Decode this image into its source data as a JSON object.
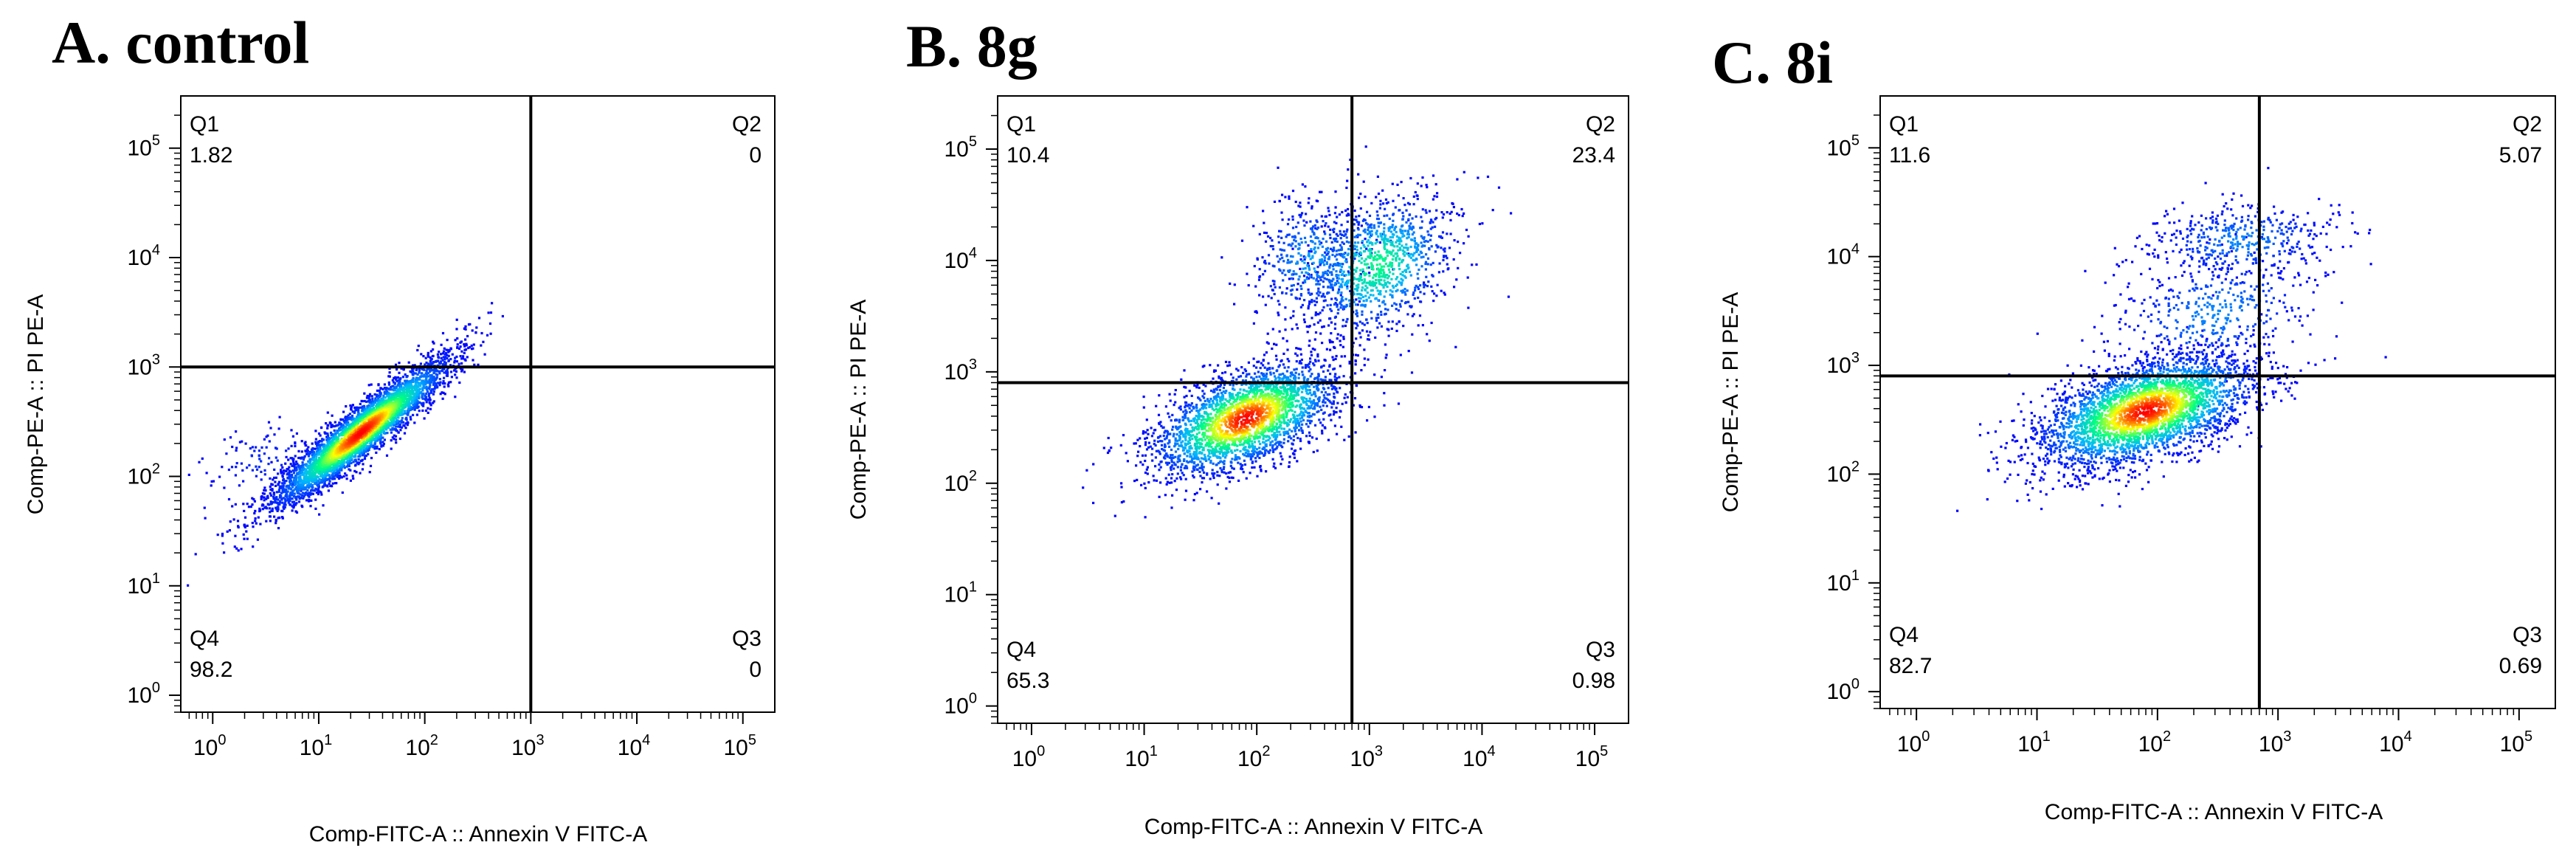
{
  "chart_data": [
    {
      "type": "scatter",
      "title": "A. control",
      "xlabel": "Comp-FITC-A :: Annexin V FITC-A",
      "ylabel": "Comp-PE-A :: PI PE-A",
      "x_scale": "log",
      "y_scale": "log",
      "xlim": [
        0.5,
        200000
      ],
      "ylim": [
        0.7,
        300000
      ],
      "x_ticks": [
        1,
        10,
        100,
        1000,
        10000,
        100000
      ],
      "y_ticks": [
        1,
        10,
        100,
        1000,
        10000,
        100000
      ],
      "x_tick_labels": [
        {
          "base": "10",
          "exp": "0"
        },
        {
          "base": "10",
          "exp": "1"
        },
        {
          "base": "10",
          "exp": "2"
        },
        {
          "base": "10",
          "exp": "3"
        },
        {
          "base": "10",
          "exp": "4"
        },
        {
          "base": "10",
          "exp": "5"
        }
      ],
      "y_tick_labels": [
        {
          "base": "10",
          "exp": "0"
        },
        {
          "base": "10",
          "exp": "1"
        },
        {
          "base": "10",
          "exp": "2"
        },
        {
          "base": "10",
          "exp": "3"
        },
        {
          "base": "10",
          "exp": "4"
        },
        {
          "base": "10",
          "exp": "5"
        }
      ],
      "gate_x": 1000,
      "gate_y": 1000,
      "quadrants": [
        {
          "name": "Q1",
          "value": "1.82",
          "position": "top-left"
        },
        {
          "name": "Q2",
          "value": "0",
          "position": "top-right"
        },
        {
          "name": "Q3",
          "value": "0",
          "position": "bottom-right"
        },
        {
          "name": "Q4",
          "value": "98.2",
          "position": "bottom-left"
        }
      ],
      "populations": [
        {
          "x": 25,
          "y": 250,
          "spread_x": 0.42,
          "spread_y": 0.34,
          "corr": 0.93,
          "weight": 0.97
        },
        {
          "x": 3,
          "y": 140,
          "spread_x": 0.28,
          "spread_y": 0.18,
          "corr": 0.2,
          "weight": 0.03
        }
      ]
    },
    {
      "type": "scatter",
      "title": "B. 8g",
      "xlabel": "Comp-FITC-A :: Annexin V FITC-A",
      "ylabel": "Comp-PE-A :: PI PE-A",
      "x_scale": "log",
      "y_scale": "log",
      "xlim": [
        0.5,
        200000
      ],
      "ylim": [
        0.7,
        300000
      ],
      "x_ticks": [
        1,
        10,
        100,
        1000,
        10000,
        100000
      ],
      "y_ticks": [
        1,
        10,
        100,
        1000,
        10000,
        100000
      ],
      "x_tick_labels": [
        {
          "base": "10",
          "exp": "0"
        },
        {
          "base": "10",
          "exp": "1"
        },
        {
          "base": "10",
          "exp": "2"
        },
        {
          "base": "10",
          "exp": "3"
        },
        {
          "base": "10",
          "exp": "4"
        },
        {
          "base": "10",
          "exp": "5"
        }
      ],
      "y_tick_labels": [
        {
          "base": "10",
          "exp": "0"
        },
        {
          "base": "10",
          "exp": "1"
        },
        {
          "base": "10",
          "exp": "2"
        },
        {
          "base": "10",
          "exp": "3"
        },
        {
          "base": "10",
          "exp": "4"
        },
        {
          "base": "10",
          "exp": "5"
        }
      ],
      "gate_x": 700,
      "gate_y": 800,
      "quadrants": [
        {
          "name": "Q1",
          "value": "10.4",
          "position": "top-left"
        },
        {
          "name": "Q2",
          "value": "23.4",
          "position": "top-right"
        },
        {
          "name": "Q3",
          "value": "0.98",
          "position": "bottom-right"
        },
        {
          "name": "Q4",
          "value": "65.3",
          "position": "bottom-left"
        }
      ],
      "populations": [
        {
          "x": 80,
          "y": 380,
          "spread_x": 0.42,
          "spread_y": 0.26,
          "corr": 0.55,
          "weight": 0.64
        },
        {
          "x": 1200,
          "y": 9000,
          "spread_x": 0.34,
          "spread_y": 0.32,
          "corr": 0.3,
          "weight": 0.26
        },
        {
          "x": 300,
          "y": 10000,
          "spread_x": 0.28,
          "spread_y": 0.3,
          "corr": 0.1,
          "weight": 0.1
        }
      ]
    },
    {
      "type": "scatter",
      "title": "C. 8i",
      "xlabel": "Comp-FITC-A :: Annexin V FITC-A",
      "ylabel": "Comp-PE-A :: PI PE-A",
      "x_scale": "log",
      "y_scale": "log",
      "xlim": [
        0.5,
        200000
      ],
      "ylim": [
        0.7,
        300000
      ],
      "x_ticks": [
        1,
        10,
        100,
        1000,
        10000,
        100000
      ],
      "y_ticks": [
        1,
        10,
        100,
        1000,
        10000,
        100000
      ],
      "x_tick_labels": [
        {
          "base": "10",
          "exp": "0"
        },
        {
          "base": "10",
          "exp": "1"
        },
        {
          "base": "10",
          "exp": "2"
        },
        {
          "base": "10",
          "exp": "3"
        },
        {
          "base": "10",
          "exp": "4"
        },
        {
          "base": "10",
          "exp": "5"
        }
      ],
      "y_tick_labels": [
        {
          "base": "10",
          "exp": "0"
        },
        {
          "base": "10",
          "exp": "1"
        },
        {
          "base": "10",
          "exp": "2"
        },
        {
          "base": "10",
          "exp": "3"
        },
        {
          "base": "10",
          "exp": "4"
        },
        {
          "base": "10",
          "exp": "5"
        }
      ],
      "gate_x": 700,
      "gate_y": 800,
      "quadrants": [
        {
          "name": "Q1",
          "value": "11.6",
          "position": "top-left"
        },
        {
          "name": "Q2",
          "value": "5.07",
          "position": "top-right"
        },
        {
          "name": "Q3",
          "value": "0.69",
          "position": "bottom-right"
        },
        {
          "name": "Q4",
          "value": "82.7",
          "position": "bottom-left"
        }
      ],
      "populations": [
        {
          "x": 80,
          "y": 380,
          "spread_x": 0.45,
          "spread_y": 0.26,
          "corr": 0.5,
          "weight": 0.8
        },
        {
          "x": 500,
          "y": 14000,
          "spread_x": 0.4,
          "spread_y": 0.18,
          "corr": 0.1,
          "weight": 0.1
        },
        {
          "x": 300,
          "y": 3000,
          "spread_x": 0.45,
          "spread_y": 0.3,
          "corr": 0.3,
          "weight": 0.1
        }
      ]
    }
  ],
  "colors": {
    "density_low": "#0000ff",
    "density_mid_low": "#00b4ff",
    "density_mid": "#00ff80",
    "density_mid_high": "#ffff00",
    "density_high": "#ff0000",
    "gate_line": "#000000",
    "frame": "#000000"
  }
}
